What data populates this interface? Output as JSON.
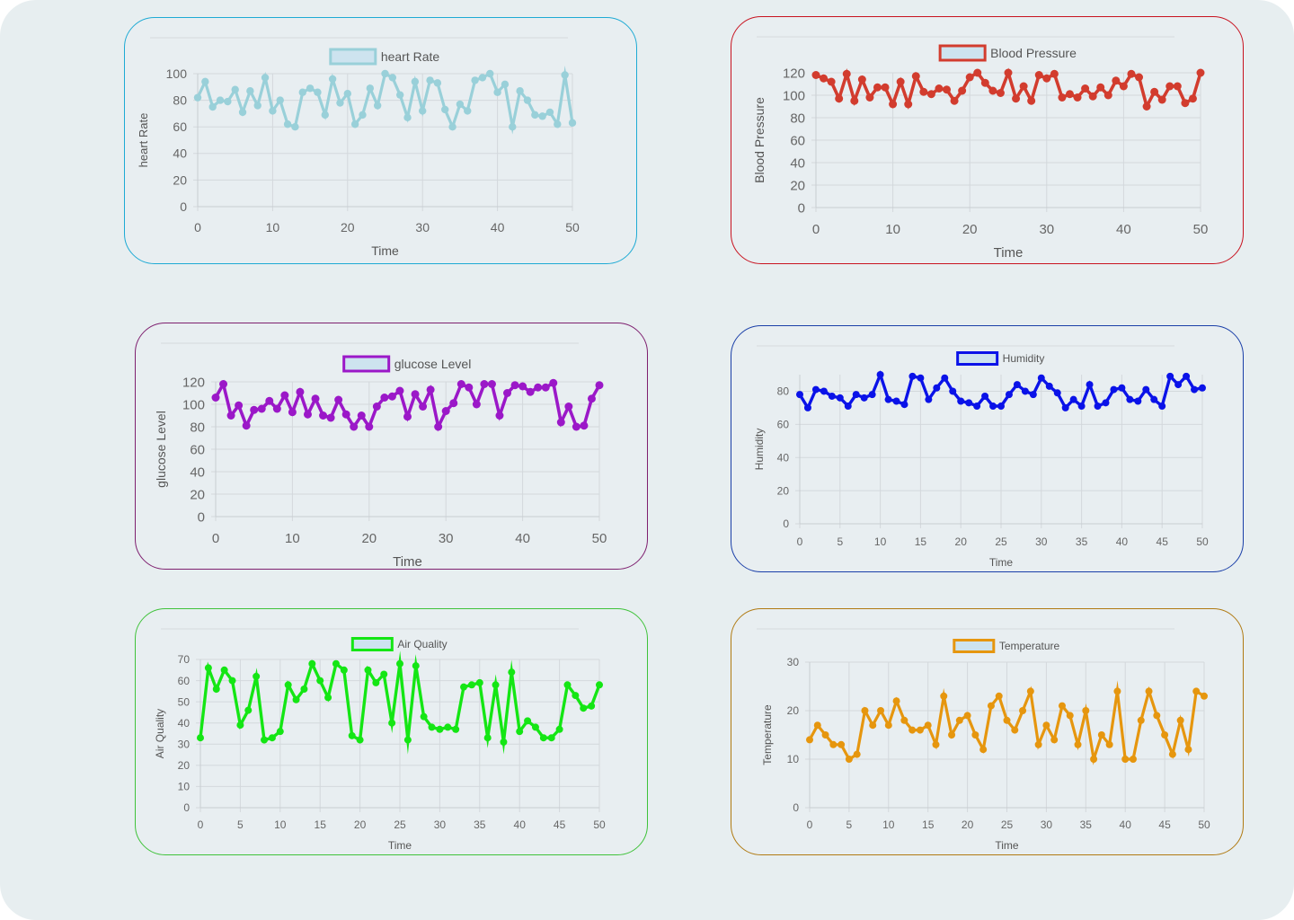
{
  "charts": [
    {
      "id": "heart-rate",
      "title": "heart Rate",
      "border": "#1eaad4",
      "color": "#99d0d9",
      "legendFill": "#cde3ef",
      "chart_data": {
        "type": "line",
        "title": "",
        "series": [
          {
            "name": "heart Rate",
            "values": [
              82,
              94,
              75,
              80,
              79,
              88,
              71,
              87,
              76,
              97,
              72,
              80,
              62,
              60,
              86,
              89,
              86,
              69,
              96,
              78,
              85,
              62,
              69,
              89,
              76,
              100,
              97,
              84,
              67,
              94,
              72,
              95,
              93,
              73,
              60,
              77,
              72,
              95,
              97,
              100,
              86,
              92,
              60,
              87,
              80,
              69,
              68,
              71,
              62,
              99,
              63
            ]
          }
        ],
        "x": [
          0,
          1,
          2,
          3,
          4,
          5,
          6,
          7,
          8,
          9,
          10,
          11,
          12,
          13,
          14,
          15,
          16,
          17,
          18,
          19,
          20,
          21,
          22,
          23,
          24,
          25,
          26,
          27,
          28,
          29,
          30,
          31,
          32,
          33,
          34,
          35,
          36,
          37,
          38,
          39,
          40,
          41,
          42,
          43,
          44,
          45,
          46,
          47,
          48,
          49,
          50
        ],
        "xlabel": "Time",
        "ylabel": "heart Rate",
        "xlim": [
          0,
          50
        ],
        "ylim": [
          0,
          100
        ],
        "xticks": [
          0,
          10,
          20,
          30,
          40,
          50
        ],
        "yticks": [
          0,
          20,
          40,
          60,
          80,
          100
        ],
        "grid": true,
        "legend": "top-center"
      }
    },
    {
      "id": "blood-pressure",
      "title": "Blood Pressure",
      "border": "#c8121f",
      "color": "#d23c2e",
      "legendFill": "#cde3ef",
      "chart_data": {
        "type": "line",
        "title": "",
        "series": [
          {
            "name": "Blood Pressure",
            "values": [
              118,
              115,
              112,
              97,
              119,
              95,
              114,
              98,
              107,
              107,
              92,
              112,
              92,
              117,
              103,
              101,
              106,
              105,
              95,
              104,
              116,
              120,
              111,
              104,
              102,
              120,
              97,
              108,
              95,
              118,
              115,
              119,
              98,
              101,
              98,
              106,
              99,
              107,
              100,
              113,
              108,
              119,
              116,
              90,
              103,
              96,
              108,
              108,
              93,
              97,
              120
            ]
          }
        ],
        "x": [
          0,
          1,
          2,
          3,
          4,
          5,
          6,
          7,
          8,
          9,
          10,
          11,
          12,
          13,
          14,
          15,
          16,
          17,
          18,
          19,
          20,
          21,
          22,
          23,
          24,
          25,
          26,
          27,
          28,
          29,
          30,
          31,
          32,
          33,
          34,
          35,
          36,
          37,
          38,
          39,
          40,
          41,
          42,
          43,
          44,
          45,
          46,
          47,
          48,
          49,
          50
        ],
        "xlabel": "Time",
        "ylabel": "Blood Pressure",
        "xlim": [
          0,
          50
        ],
        "ylim": [
          0,
          120
        ],
        "xticks": [
          0,
          10,
          20,
          30,
          40,
          50
        ],
        "yticks": [
          0,
          20,
          40,
          60,
          80,
          100,
          120
        ],
        "grid": true,
        "legend": "top-center"
      }
    },
    {
      "id": "glucose-level",
      "title": "glucose Level",
      "border": "#7e1f6f",
      "color": "#9b18c8",
      "legendFill": "#cde3ef",
      "chart_data": {
        "type": "line",
        "title": "",
        "series": [
          {
            "name": "glucose Level",
            "values": [
              106,
              118,
              90,
              99,
              81,
              95,
              96,
              103,
              96,
              108,
              93,
              111,
              91,
              105,
              90,
              88,
              104,
              91,
              80,
              90,
              80,
              98,
              106,
              107,
              112,
              89,
              109,
              98,
              113,
              80,
              94,
              101,
              118,
              115,
              100,
              118,
              118,
              90,
              110,
              117,
              116,
              111,
              115,
              115,
              119,
              84,
              98,
              80,
              81,
              105,
              117
            ]
          }
        ],
        "x": [
          0,
          1,
          2,
          3,
          4,
          5,
          6,
          7,
          8,
          9,
          10,
          11,
          12,
          13,
          14,
          15,
          16,
          17,
          18,
          19,
          20,
          21,
          22,
          23,
          24,
          25,
          26,
          27,
          28,
          29,
          30,
          31,
          32,
          33,
          34,
          35,
          36,
          37,
          38,
          39,
          40,
          41,
          42,
          43,
          44,
          45,
          46,
          47,
          48,
          49,
          50
        ],
        "xlabel": "Time",
        "ylabel": "glucose Level",
        "xlim": [
          0,
          50
        ],
        "ylim": [
          0,
          120
        ],
        "xticks": [
          0,
          10,
          20,
          30,
          40,
          50
        ],
        "yticks": [
          0,
          20,
          40,
          60,
          80,
          100,
          120
        ],
        "grid": true,
        "legend": "top-center"
      }
    },
    {
      "id": "humidity",
      "title": "Humidity",
      "border": "#1a3fa8",
      "color": "#0a12e8",
      "legendFill": "#cde3ef",
      "chart_data": {
        "type": "line",
        "title": "",
        "series": [
          {
            "name": "Humidity",
            "values": [
              78,
              70,
              81,
              80,
              77,
              76,
              71,
              78,
              76,
              78,
              90,
              75,
              74,
              72,
              89,
              88,
              75,
              82,
              88,
              80,
              74,
              73,
              71,
              77,
              71,
              71,
              78,
              84,
              80,
              78,
              88,
              83,
              79,
              70,
              75,
              71,
              84,
              71,
              73,
              81,
              82,
              75,
              74,
              81,
              75,
              71,
              89,
              84,
              89,
              81,
              82
            ]
          }
        ],
        "x": [
          0,
          1,
          2,
          3,
          4,
          5,
          6,
          7,
          8,
          9,
          10,
          11,
          12,
          13,
          14,
          15,
          16,
          17,
          18,
          19,
          20,
          21,
          22,
          23,
          24,
          25,
          26,
          27,
          28,
          29,
          30,
          31,
          32,
          33,
          34,
          35,
          36,
          37,
          38,
          39,
          40,
          41,
          42,
          43,
          44,
          45,
          46,
          47,
          48,
          49,
          50
        ],
        "xlabel": "Time",
        "ylabel": "Humidity",
        "xlim": [
          0,
          50
        ],
        "ylim": [
          0,
          90
        ],
        "xticks": [
          0,
          5,
          10,
          15,
          20,
          25,
          30,
          35,
          40,
          45,
          50
        ],
        "yticks": [
          0,
          20,
          40,
          60,
          80
        ],
        "grid": true,
        "legend": "top-center"
      }
    },
    {
      "id": "air-quality",
      "title": "Air Quality",
      "border": "#3fc23a",
      "color": "#14e614",
      "legendFill": "#cde3ef",
      "chart_data": {
        "type": "line",
        "title": "",
        "series": [
          {
            "name": "Air Quality",
            "values": [
              33,
              66,
              56,
              65,
              60,
              39,
              46,
              62,
              32,
              33,
              36,
              58,
              51,
              56,
              68,
              60,
              52,
              68,
              65,
              34,
              32,
              65,
              59,
              63,
              40,
              68,
              32,
              67,
              43,
              38,
              37,
              38,
              37,
              57,
              58,
              59,
              33,
              58,
              31,
              64,
              36,
              41,
              38,
              33,
              33,
              37,
              58,
              53,
              47,
              48,
              58
            ]
          }
        ],
        "x": [
          0,
          1,
          2,
          3,
          4,
          5,
          6,
          7,
          8,
          9,
          10,
          11,
          12,
          13,
          14,
          15,
          16,
          17,
          18,
          19,
          20,
          21,
          22,
          23,
          24,
          25,
          26,
          27,
          28,
          29,
          30,
          31,
          32,
          33,
          34,
          35,
          36,
          37,
          38,
          39,
          40,
          41,
          42,
          43,
          44,
          45,
          46,
          47,
          48,
          49,
          50
        ],
        "xlabel": "Time",
        "ylabel": "Air Quality",
        "xlim": [
          0,
          50
        ],
        "ylim": [
          0,
          70
        ],
        "xticks": [
          0,
          5,
          10,
          15,
          20,
          25,
          30,
          35,
          40,
          45,
          50
        ],
        "yticks": [
          0,
          10,
          20,
          30,
          40,
          50,
          60,
          70
        ],
        "grid": true,
        "legend": "top-center"
      }
    },
    {
      "id": "temperature",
      "title": "Temperature",
      "border": "#b07a12",
      "color": "#e6960e",
      "legendFill": "#cde3ef",
      "chart_data": {
        "type": "line",
        "title": "",
        "series": [
          {
            "name": "Temperature",
            "values": [
              14,
              17,
              15,
              13,
              13,
              10,
              11,
              20,
              17,
              20,
              17,
              22,
              18,
              16,
              16,
              17,
              13,
              23,
              15,
              18,
              19,
              15,
              12,
              21,
              23,
              18,
              16,
              20,
              24,
              13,
              17,
              14,
              21,
              19,
              13,
              20,
              10,
              15,
              13,
              24,
              10,
              10,
              18,
              24,
              19,
              15,
              11,
              18,
              12,
              24,
              23
            ]
          }
        ],
        "x": [
          0,
          1,
          2,
          3,
          4,
          5,
          6,
          7,
          8,
          9,
          10,
          11,
          12,
          13,
          14,
          15,
          16,
          17,
          18,
          19,
          20,
          21,
          22,
          23,
          24,
          25,
          26,
          27,
          28,
          29,
          30,
          31,
          32,
          33,
          34,
          35,
          36,
          37,
          38,
          39,
          40,
          41,
          42,
          43,
          44,
          45,
          46,
          47,
          48,
          49,
          50
        ],
        "xlabel": "Time",
        "ylabel": "Temperature",
        "xlim": [
          0,
          50
        ],
        "ylim": [
          0,
          30
        ],
        "xticks": [
          0,
          5,
          10,
          15,
          20,
          25,
          30,
          35,
          40,
          45,
          50
        ],
        "yticks": [
          0,
          10,
          20,
          30
        ],
        "grid": true,
        "legend": "top-center"
      }
    }
  ]
}
